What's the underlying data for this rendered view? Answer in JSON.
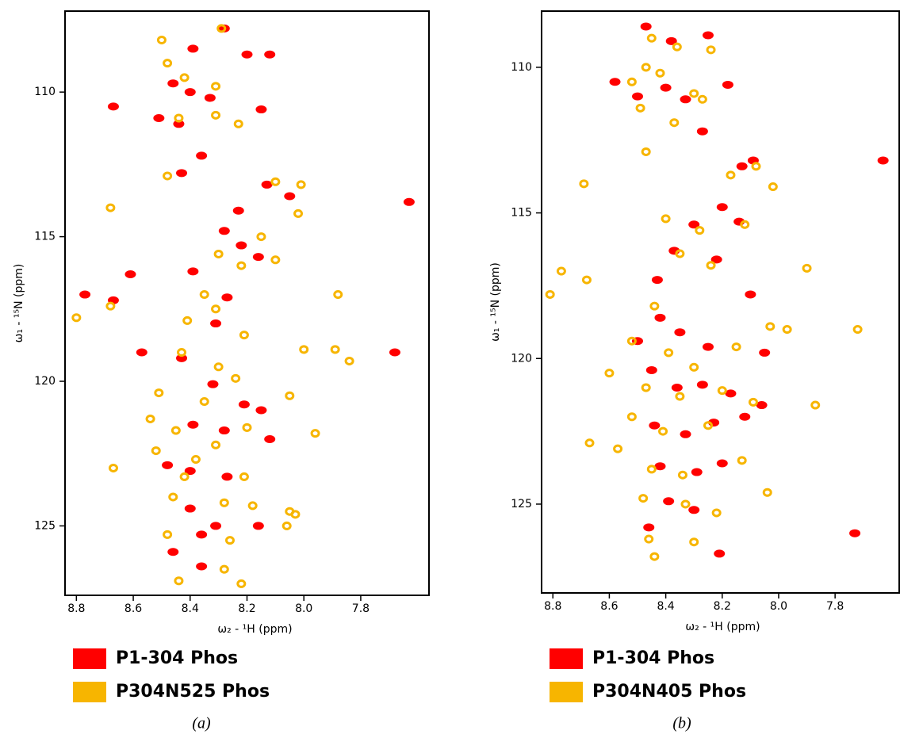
{
  "chart_data": [
    {
      "type": "scatter",
      "caption": "(a)",
      "xlabel": "ω₂ - ¹H  (ppm)",
      "ylabel": "ω₁ - ¹⁵N  (ppm)",
      "xlim": [
        8.84,
        7.56
      ],
      "ylim": [
        107.2,
        127.4
      ],
      "y_inverted": true,
      "xticks": [
        8.8,
        8.6,
        8.4,
        8.2,
        {
          "value": 8,
          "label": "8.0"
        },
        7.8
      ],
      "yticks": [
        110,
        115,
        120,
        125
      ],
      "series": [
        {
          "name": "P1-304 Phos",
          "color": "#ff0000",
          "x": [
            8.28,
            8.39,
            8.2,
            8.12,
            8.46,
            8.4,
            8.33,
            8.51,
            8.44,
            8.15,
            8.67,
            8.36,
            8.43,
            8.13,
            8.05,
            8.23,
            8.28,
            8.22,
            8.16,
            8.39,
            8.61,
            8.77,
            8.67,
            8.27,
            8.31,
            8.57,
            8.43,
            8.32,
            8.21,
            8.15,
            8.39,
            8.28,
            8.12,
            8.48,
            8.4,
            8.27,
            8.4,
            8.31,
            8.36,
            8.16,
            8.46,
            8.36,
            7.68,
            7.63
          ],
          "values": [
            107.8,
            108.5,
            108.7,
            108.7,
            109.7,
            110.0,
            110.2,
            110.9,
            111.1,
            110.6,
            110.5,
            112.2,
            112.8,
            113.2,
            113.6,
            114.1,
            114.8,
            115.3,
            115.7,
            116.2,
            116.3,
            117.0,
            117.2,
            117.1,
            118.0,
            119.0,
            119.2,
            120.1,
            120.8,
            121.0,
            121.5,
            121.7,
            122.0,
            122.9,
            123.1,
            123.3,
            124.4,
            125.0,
            125.3,
            125.0,
            125.9,
            126.4,
            119.0,
            113.8
          ]
        },
        {
          "name": "P304N525 Phos",
          "color": "#f7b500",
          "x": [
            8.29,
            8.5,
            8.48,
            8.42,
            8.31,
            8.44,
            8.31,
            8.23,
            8.48,
            8.68,
            8.1,
            8.01,
            8.02,
            8.15,
            8.3,
            8.22,
            8.1,
            8.35,
            8.31,
            8.68,
            8.8,
            7.88,
            8.41,
            8.21,
            8.0,
            7.89,
            7.84,
            8.43,
            8.3,
            8.24,
            8.51,
            8.35,
            8.05,
            8.54,
            8.45,
            8.2,
            7.96,
            8.52,
            8.38,
            8.31,
            8.67,
            8.42,
            8.21,
            8.46,
            8.28,
            8.18,
            8.05,
            8.48,
            8.26,
            8.06,
            8.03,
            8.44,
            8.28,
            8.22
          ],
          "values": [
            107.8,
            108.2,
            109.0,
            109.5,
            109.8,
            110.9,
            110.8,
            111.1,
            112.9,
            114.0,
            113.1,
            113.2,
            114.2,
            115.0,
            115.6,
            116.0,
            115.8,
            117.0,
            117.5,
            117.4,
            117.8,
            117.0,
            117.9,
            118.4,
            118.9,
            118.9,
            119.3,
            119.0,
            119.5,
            119.9,
            120.4,
            120.7,
            120.5,
            121.3,
            121.7,
            121.6,
            121.8,
            122.4,
            122.7,
            122.2,
            123.0,
            123.3,
            123.3,
            124.0,
            124.2,
            124.3,
            124.5,
            125.3,
            125.5,
            125.0,
            124.6,
            126.9,
            126.5,
            127.0
          ]
        }
      ]
    },
    {
      "type": "scatter",
      "caption": "(b)",
      "xlabel": "ω₂ - ¹H  (ppm)",
      "ylabel": "ω₁ - ¹⁵N  (ppm)",
      "xlim": [
        8.84,
        7.57
      ],
      "ylim": [
        108.07,
        128.05
      ],
      "y_inverted": true,
      "xticks": [
        8.8,
        8.6,
        8.4,
        8.2,
        {
          "value": 8,
          "label": "8.0"
        },
        7.8
      ],
      "yticks": [
        110,
        115,
        120,
        125
      ],
      "series": [
        {
          "name": "P1-304 Phos",
          "color": "#ff0000",
          "x": [
            8.47,
            8.38,
            8.25,
            8.58,
            8.5,
            8.4,
            8.33,
            8.18,
            8.27,
            8.13,
            8.09,
            8.2,
            8.14,
            8.3,
            8.37,
            8.22,
            8.43,
            8.1,
            8.42,
            8.5,
            8.35,
            8.25,
            8.05,
            8.45,
            8.36,
            8.27,
            8.17,
            8.06,
            8.44,
            8.33,
            8.23,
            8.12,
            8.42,
            8.29,
            8.2,
            8.39,
            8.3,
            8.46,
            8.21,
            7.73,
            7.63
          ],
          "values": [
            108.6,
            109.1,
            108.9,
            110.5,
            111.0,
            110.7,
            111.1,
            110.6,
            112.2,
            113.4,
            113.2,
            114.8,
            115.3,
            115.4,
            116.3,
            116.6,
            117.3,
            117.8,
            118.6,
            119.4,
            119.1,
            119.6,
            119.8,
            120.4,
            121.0,
            120.9,
            121.2,
            121.6,
            122.3,
            122.6,
            122.2,
            122.0,
            123.7,
            123.9,
            123.6,
            124.9,
            125.2,
            125.8,
            126.7,
            126.0,
            113.2
          ]
        },
        {
          "name": "P304N405 Phos",
          "color": "#f7b500",
          "x": [
            8.45,
            8.47,
            8.36,
            8.24,
            8.52,
            8.42,
            8.3,
            8.49,
            8.37,
            8.27,
            8.47,
            8.69,
            8.17,
            8.08,
            8.02,
            8.4,
            8.28,
            8.12,
            8.35,
            8.24,
            8.77,
            8.68,
            8.81,
            7.9,
            8.44,
            8.03,
            7.97,
            7.72,
            8.52,
            8.39,
            8.3,
            8.15,
            8.6,
            8.47,
            8.35,
            8.2,
            8.09,
            7.87,
            8.52,
            8.41,
            8.25,
            8.67,
            8.57,
            8.45,
            8.34,
            8.13,
            8.48,
            8.33,
            8.22,
            8.04,
            8.46,
            8.3,
            8.44
          ],
          "values": [
            109.0,
            110.0,
            109.3,
            109.4,
            110.5,
            110.2,
            110.9,
            111.4,
            111.9,
            111.1,
            112.9,
            114.0,
            113.7,
            113.4,
            114.1,
            115.2,
            115.6,
            115.4,
            116.4,
            116.8,
            117.0,
            117.3,
            117.8,
            116.9,
            118.2,
            118.9,
            119.0,
            119.0,
            119.4,
            119.8,
            120.3,
            119.6,
            120.5,
            121.0,
            121.3,
            121.1,
            121.5,
            121.6,
            122.0,
            122.5,
            122.3,
            122.9,
            123.1,
            123.8,
            124.0,
            123.5,
            124.8,
            125.0,
            125.3,
            124.6,
            126.2,
            126.3,
            126.8
          ]
        }
      ]
    }
  ]
}
